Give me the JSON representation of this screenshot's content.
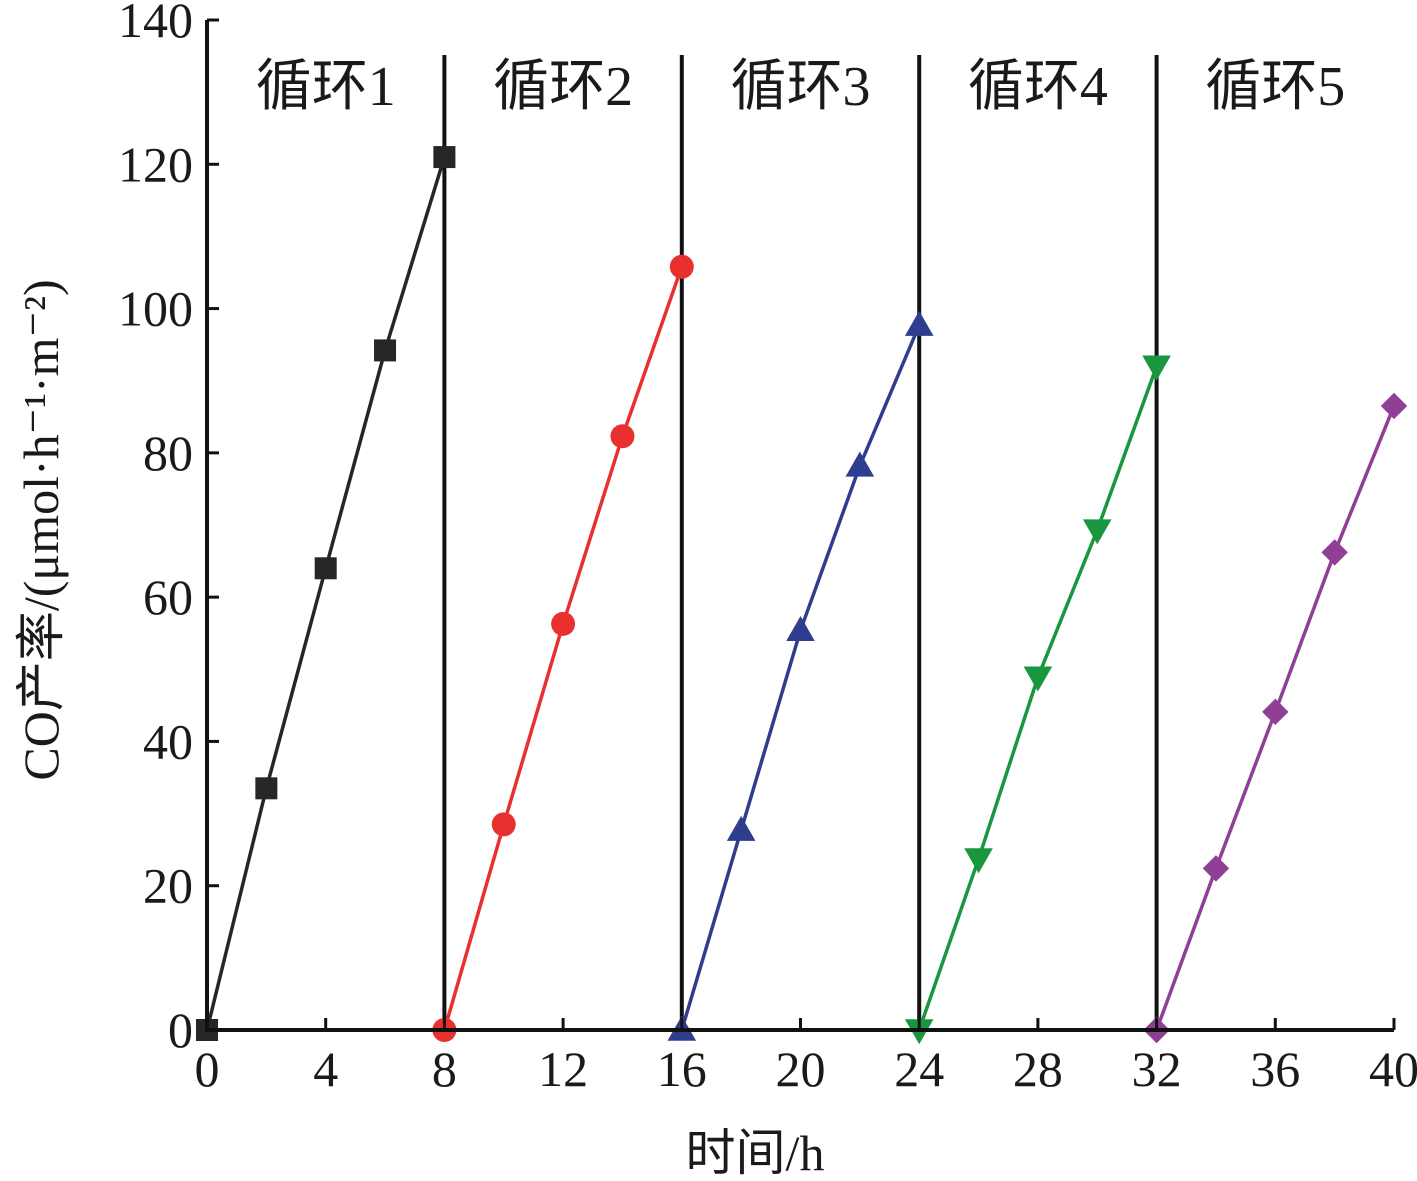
{
  "chart_data": {
    "type": "line",
    "xlabel": "时间/h",
    "ylabel": "CO产率/(μmol·h⁻¹·m⁻²)",
    "xlim": [
      0,
      40
    ],
    "ylim": [
      0,
      140
    ],
    "x_ticks": [
      0,
      4,
      8,
      12,
      16,
      20,
      24,
      28,
      32,
      36,
      40
    ],
    "y_ticks": [
      0,
      20,
      40,
      60,
      80,
      100,
      120,
      140
    ],
    "grid": false,
    "separators": [
      8,
      16,
      24,
      32
    ],
    "cycle_labels": [
      "循环1",
      "循环2",
      "循环3",
      "循环4",
      "循环5"
    ],
    "series": [
      {
        "color": "#262626",
        "marker": "square",
        "x": [
          0,
          2,
          4,
          6,
          8
        ],
        "y": [
          0,
          33.5,
          64,
          94.2,
          121
        ]
      },
      {
        "color": "#e8312f",
        "marker": "circle",
        "x": [
          8,
          10,
          12,
          14,
          16
        ],
        "y": [
          0,
          28.5,
          56.3,
          82.3,
          105.8
        ]
      },
      {
        "color": "#2f3d8f",
        "marker": "triangle-up",
        "x": [
          16,
          18,
          20,
          22,
          24
        ],
        "y": [
          0,
          27.7,
          55.4,
          78.2,
          97.7
        ]
      },
      {
        "color": "#18973f",
        "marker": "triangle-down",
        "x": [
          24,
          26,
          28,
          30,
          32
        ],
        "y": [
          0,
          23.7,
          48.9,
          69.3,
          92
        ]
      },
      {
        "color": "#8f3f95",
        "marker": "diamond",
        "x": [
          32,
          34,
          36,
          38,
          40
        ],
        "y": [
          0,
          22.4,
          44.1,
          66.2,
          86.5
        ]
      }
    ]
  }
}
